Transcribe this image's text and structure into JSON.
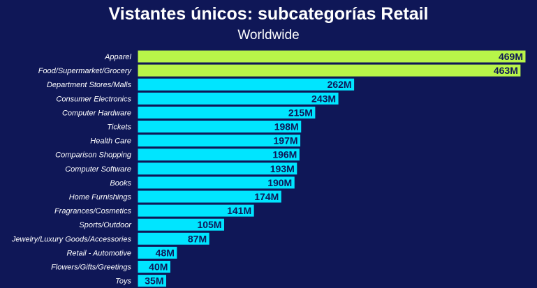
{
  "chart_data": {
    "type": "bar",
    "orientation": "horizontal",
    "title": "Vistantes únicos: subcategorías Retail",
    "subtitle": "Worldwide",
    "xlabel": "",
    "ylabel": "",
    "xlim": [
      0,
      469
    ],
    "grid": false,
    "categories": [
      "Apparel",
      "Food/Supermarket/Grocery",
      "Department Stores/Malls",
      "Consumer Electronics",
      "Computer Hardware",
      "Tickets",
      "Health Care",
      "Comparison Shopping",
      "Computer Software",
      "Books",
      "Home Furnishings",
      "Fragrances/Cosmetics",
      "Sports/Outdoor",
      "Jewelry/Luxury Goods/Accessories",
      "Retail - Automotive",
      "Flowers/Gifts/Greetings",
      "Toys"
    ],
    "values": [
      469,
      463,
      262,
      243,
      215,
      198,
      197,
      196,
      193,
      190,
      174,
      141,
      105,
      87,
      48,
      40,
      35
    ],
    "value_labels": [
      "469M",
      "463M",
      "262M",
      "243M",
      "215M",
      "198M",
      "197M",
      "196M",
      "193M",
      "190M",
      "174M",
      "141M",
      "105M",
      "87M",
      "48M",
      "40M",
      "35M"
    ],
    "highlight_count": 2,
    "colors": {
      "background": "#0f1757",
      "bar": "#00e5ff",
      "bar_highlight": "#b8f549",
      "bar_outline": "#0f1757",
      "value_text": "#0f1757",
      "text": "#ffffff"
    }
  }
}
